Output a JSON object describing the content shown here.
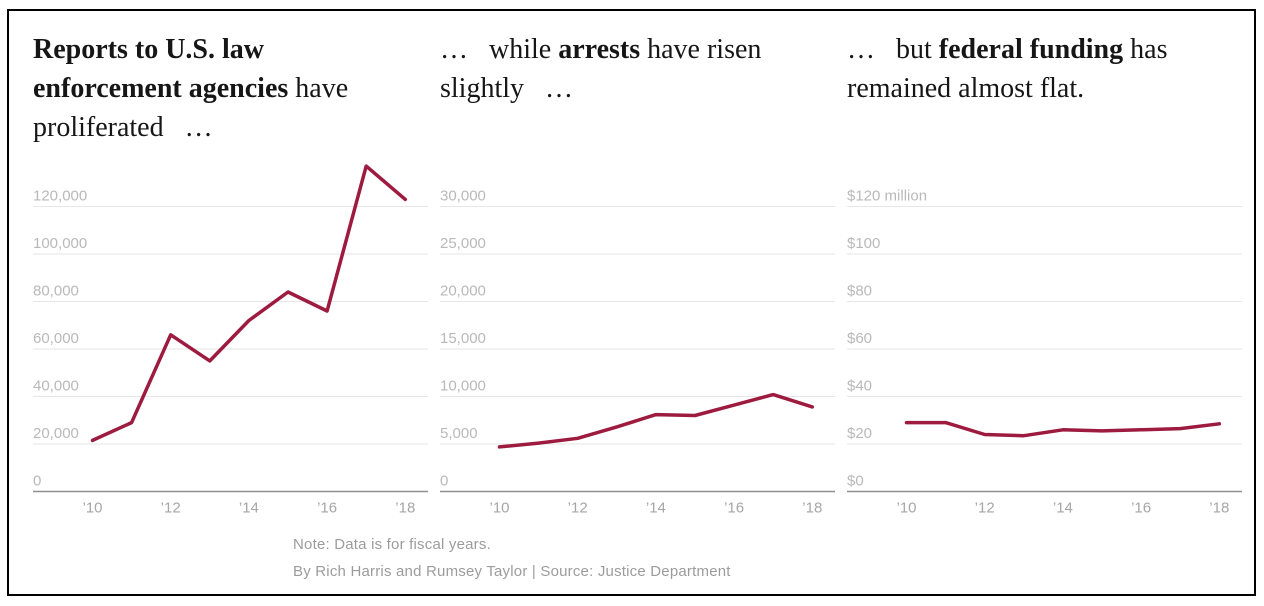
{
  "figure": {
    "footer": {
      "note": "Note: Data is for fiscal years.",
      "byline": "By Rich Harris and Rumsey Taylor | Source: Justice Department"
    }
  },
  "chart_data": [
    {
      "type": "line",
      "id": "reports",
      "title": "Reports to U.S. law enforcement agencies have proliferated …",
      "title_lines": [
        [
          {
            "t": "Reports to U.S. law",
            "b": 1
          }
        ],
        [
          {
            "t": "enforcement agencies",
            "b": 1
          },
          {
            "t": " have",
            "b": 0
          }
        ],
        [
          {
            "t": "proliferated   …",
            "b": 0
          }
        ]
      ],
      "x": [
        2010,
        2011,
        2012,
        2013,
        2014,
        2015,
        2016,
        2017,
        2018
      ],
      "values": [
        21500,
        29000,
        66000,
        55000,
        72000,
        84000,
        76000,
        137000,
        123000
      ],
      "x_tick_labels": [
        "’10",
        "’12",
        "’14",
        "’16",
        "’18"
      ],
      "y_tick_labels": [
        "0",
        "20,000",
        "40,000",
        "60,000",
        "80,000",
        "100,000",
        "120,000"
      ],
      "y_tick_step": 20000,
      "ylim": [
        0,
        140000
      ],
      "grid": true,
      "legend": false
    },
    {
      "type": "line",
      "id": "arrests",
      "title": "… while arrests have risen slightly …",
      "title_lines": [
        [
          {
            "t": "…   while ",
            "b": 0
          },
          {
            "t": "arrests",
            "b": 1
          },
          {
            "t": " have risen",
            "b": 0
          }
        ],
        [
          {
            "t": "slightly   …",
            "b": 0
          }
        ]
      ],
      "x": [
        2010,
        2011,
        2012,
        2013,
        2014,
        2015,
        2016,
        2017,
        2018
      ],
      "values": [
        4700,
        5100,
        5600,
        6800,
        8100,
        8000,
        9100,
        10200,
        8900
      ],
      "x_tick_labels": [
        "’10",
        "’12",
        "’14",
        "’16",
        "’18"
      ],
      "y_tick_labels": [
        "0",
        "5,000",
        "10,000",
        "15,000",
        "20,000",
        "25,000",
        "30,000"
      ],
      "y_tick_step": 5000,
      "ylim": [
        0,
        32000
      ],
      "grid": true,
      "legend": false
    },
    {
      "type": "line",
      "id": "funding",
      "title": "… but federal funding has remained almost flat.",
      "title_lines": [
        [
          {
            "t": "…   but ",
            "b": 0
          },
          {
            "t": "federal funding",
            "b": 1
          },
          {
            "t": " has",
            "b": 0
          }
        ],
        [
          {
            "t": "remained almost flat.",
            "b": 0
          }
        ]
      ],
      "x": [
        2010,
        2011,
        2012,
        2013,
        2014,
        2015,
        2016,
        2017,
        2018
      ],
      "values": [
        29,
        29,
        24,
        23.5,
        26,
        25.5,
        26,
        26.5,
        28.5
      ],
      "y_unit": "$ million",
      "x_tick_labels": [
        "’10",
        "’12",
        "’14",
        "’16",
        "’18"
      ],
      "y_tick_labels": [
        "$0",
        "$20",
        "$40",
        "$60",
        "$80",
        "$100",
        "$120 million"
      ],
      "y_tick_step": 20,
      "ylim": [
        0,
        140
      ],
      "grid": true,
      "legend": false
    }
  ],
  "style": {
    "line_color": "#9e1b40",
    "grid_color": "#e6e6e6",
    "axis_color": "#8f8f8f",
    "y_label_color": "#b9b9b9",
    "x_label_color": "#a6a6a6",
    "title_color": "#161616",
    "footer_color": "#9c9c9c",
    "border_color": "#000000"
  }
}
